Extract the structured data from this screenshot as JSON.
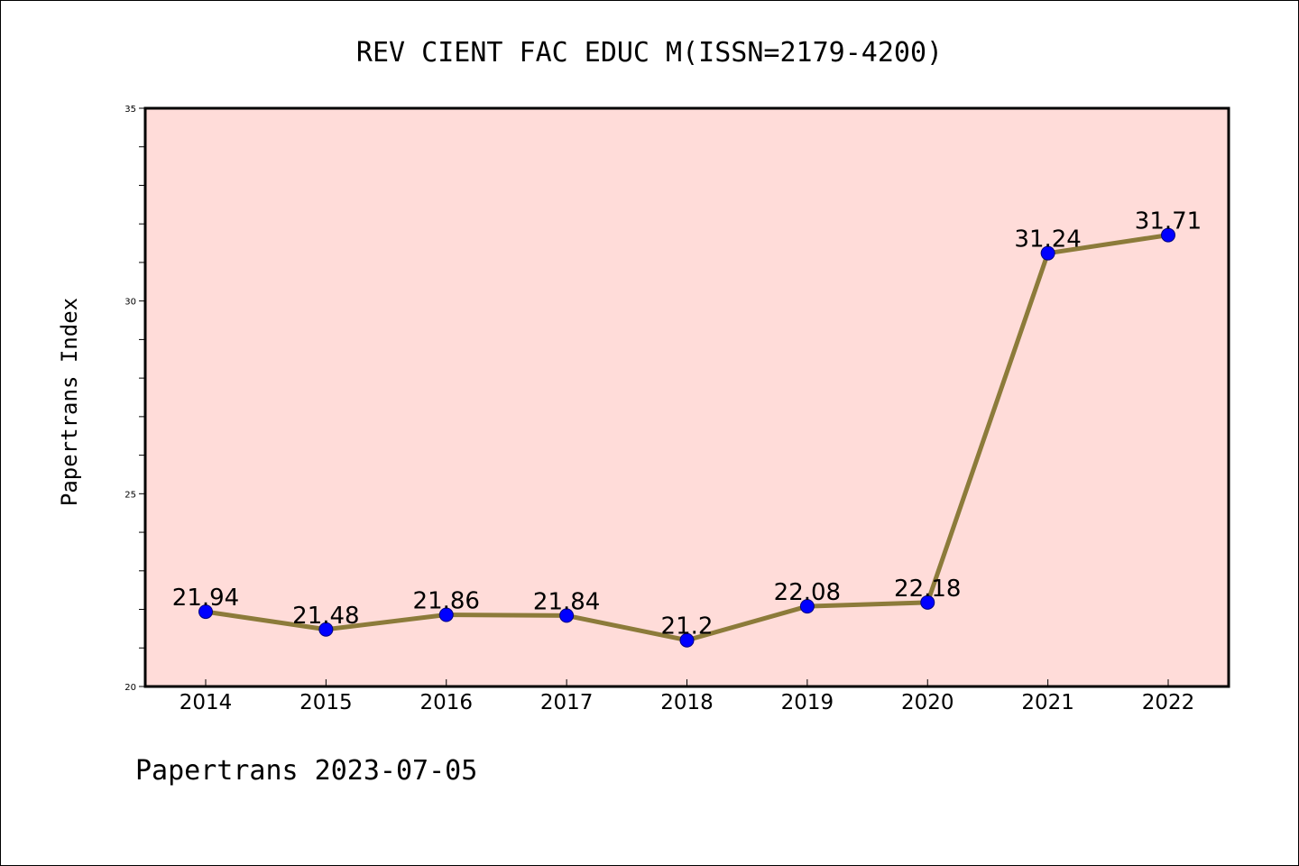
{
  "chart_data": {
    "type": "line",
    "title": "REV CIENT FAC EDUC M(ISSN=2179-4200)",
    "xlabel": "",
    "ylabel": "Papertrans Index",
    "x": [
      "2014",
      "2015",
      "2016",
      "2017",
      "2018",
      "2019",
      "2020",
      "2021",
      "2022"
    ],
    "values": [
      21.94,
      21.48,
      21.86,
      21.84,
      21.2,
      22.08,
      22.18,
      31.24,
      31.71
    ],
    "data_labels": [
      "21.94",
      "21.48",
      "21.86",
      "21.84",
      "21.2",
      "22.08",
      "22.18",
      "31.24",
      "31.71"
    ],
    "ylim": [
      20,
      35
    ],
    "yticks": [
      "20",
      "25",
      "30",
      "35"
    ],
    "grid": false,
    "legend": "none",
    "colors": {
      "plot_background": "#ffdcd9",
      "line": "#8c7b3a",
      "marker": "#0000ff",
      "marker_edge": "#000080"
    }
  },
  "footer": {
    "text": "Papertrans 2023-07-05"
  }
}
